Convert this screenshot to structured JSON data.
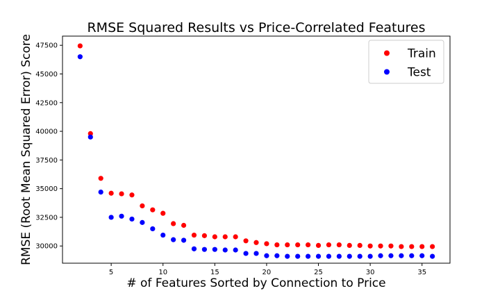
{
  "chart_data": {
    "type": "scatter",
    "title": "RMSE Squared Results vs Price-Correlated Features",
    "xlabel": "# of Features Sorted by Connection to Price",
    "ylabel": "RMSE (Root Mean Squared Error) Score",
    "xlim": [
      0.3,
      37.7
    ],
    "ylim": [
      28500,
      48300
    ],
    "xticks": [
      5,
      10,
      15,
      20,
      25,
      30,
      35
    ],
    "yticks": [
      30000,
      32500,
      35000,
      37500,
      40000,
      42500,
      45000,
      47500
    ],
    "grid": false,
    "legend_position": "top-right",
    "x": [
      2,
      3,
      4,
      5,
      6,
      7,
      8,
      9,
      10,
      11,
      12,
      13,
      14,
      15,
      16,
      17,
      18,
      19,
      20,
      21,
      22,
      23,
      24,
      25,
      26,
      27,
      28,
      29,
      30,
      31,
      32,
      33,
      34,
      35,
      36
    ],
    "series": [
      {
        "name": "Train",
        "color": "#ff0000",
        "values": [
          47450,
          39800,
          35900,
          34600,
          34550,
          34450,
          33500,
          33150,
          32850,
          31950,
          31800,
          30950,
          30900,
          30800,
          30800,
          30800,
          30450,
          30300,
          30200,
          30100,
          30100,
          30100,
          30100,
          30050,
          30100,
          30100,
          30050,
          30050,
          30000,
          30000,
          30000,
          29950,
          29950,
          29950,
          29950
        ]
      },
      {
        "name": "Test",
        "color": "#0000ff",
        "values": [
          46500,
          39500,
          34700,
          32500,
          32600,
          32350,
          32050,
          31500,
          30950,
          30550,
          30500,
          29750,
          29700,
          29700,
          29650,
          29650,
          29350,
          29350,
          29150,
          29150,
          29100,
          29100,
          29100,
          29100,
          29100,
          29100,
          29100,
          29100,
          29100,
          29150,
          29150,
          29150,
          29150,
          29150,
          29100
        ]
      }
    ]
  }
}
